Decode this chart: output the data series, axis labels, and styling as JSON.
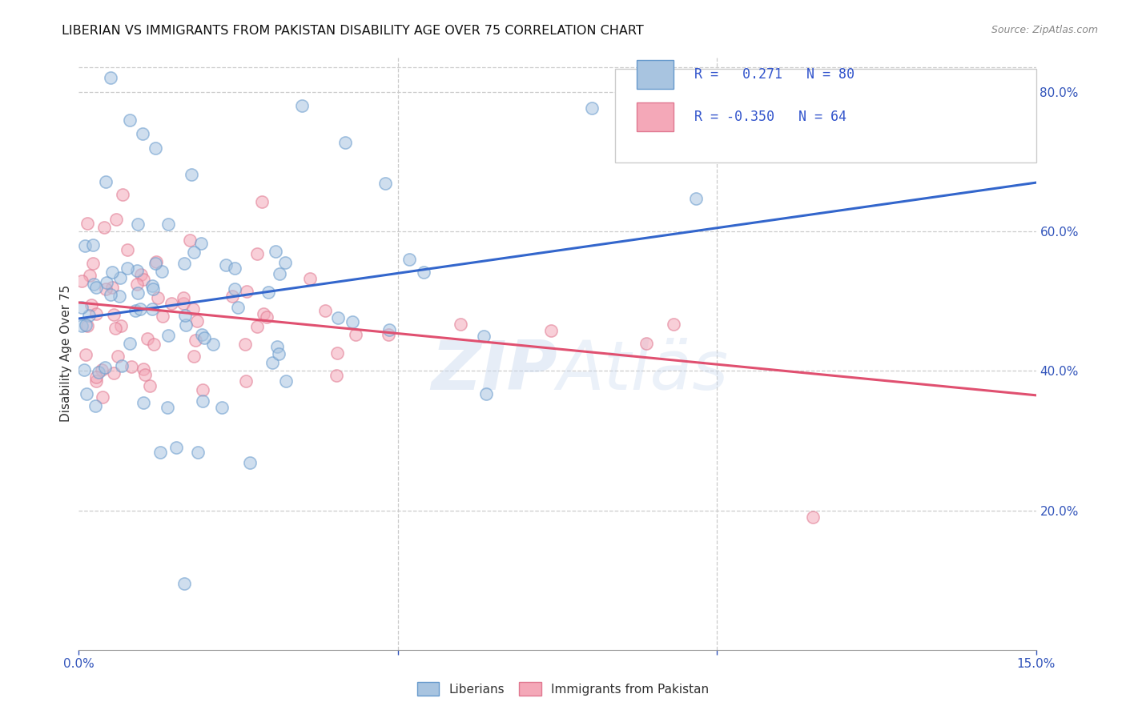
{
  "title": "LIBERIAN VS IMMIGRANTS FROM PAKISTAN DISABILITY AGE OVER 75 CORRELATION CHART",
  "source": "Source: ZipAtlas.com",
  "ylabel": "Disability Age Over 75",
  "xlim": [
    0.0,
    0.15
  ],
  "ylim": [
    0.0,
    0.85
  ],
  "x_ticks": [
    0.0,
    0.05,
    0.1,
    0.15
  ],
  "x_tick_labels": [
    "0.0%",
    "",
    "",
    "15.0%"
  ],
  "y_ticks_right": [
    0.2,
    0.4,
    0.6,
    0.8
  ],
  "y_tick_labels_right": [
    "20.0%",
    "40.0%",
    "60.0%",
    "80.0%"
  ],
  "liberian_color": "#a8c4e0",
  "pakistan_color": "#f4a8b8",
  "liberian_edge_color": "#6699cc",
  "pakistan_edge_color": "#e07890",
  "liberian_line_color": "#3366cc",
  "pakistan_line_color": "#e05070",
  "R_liberian": 0.271,
  "N_liberian": 80,
  "R_pakistan": -0.35,
  "N_pakistan": 64,
  "legend_label_1": "Liberians",
  "legend_label_2": "Immigrants from Pakistan",
  "watermark": "ZIPAtlas",
  "lib_line_y0": 0.475,
  "lib_line_y1": 0.67,
  "pak_line_y0": 0.498,
  "pak_line_y1": 0.365
}
